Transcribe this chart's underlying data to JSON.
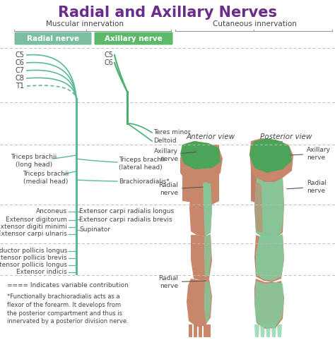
{
  "title": "Radial and Axillary Nerves",
  "title_color": "#6B2D8B",
  "subtitle_left": "Muscular innervation",
  "subtitle_right": "Cutaneous innervation",
  "legend_radial": "Radial nerve",
  "legend_axillary": "Axillary nerve",
  "legend_radial_color": "#7BBFA0",
  "legend_axillary_color": "#5CB96A",
  "bg_color": "#FFFFFF",
  "nerve_color_radial": "#5BB89A",
  "nerve_color_axillary": "#4CAF6E",
  "skin_color": "#C8876A",
  "skin_light": "#D4A080",
  "green_dark": "#3DA855",
  "green_light": "#7DCFA0",
  "dashed_color": "#BBBBBB",
  "text_color": "#444444",
  "footer_note1": "==== Indicates variable contribution",
  "footer_note2": "*Functionally brachioradialis acts as a\nflexor of the forearm. It develops from\nthe posterior compartment and thus is\ninnervated by a posterior division nerve."
}
